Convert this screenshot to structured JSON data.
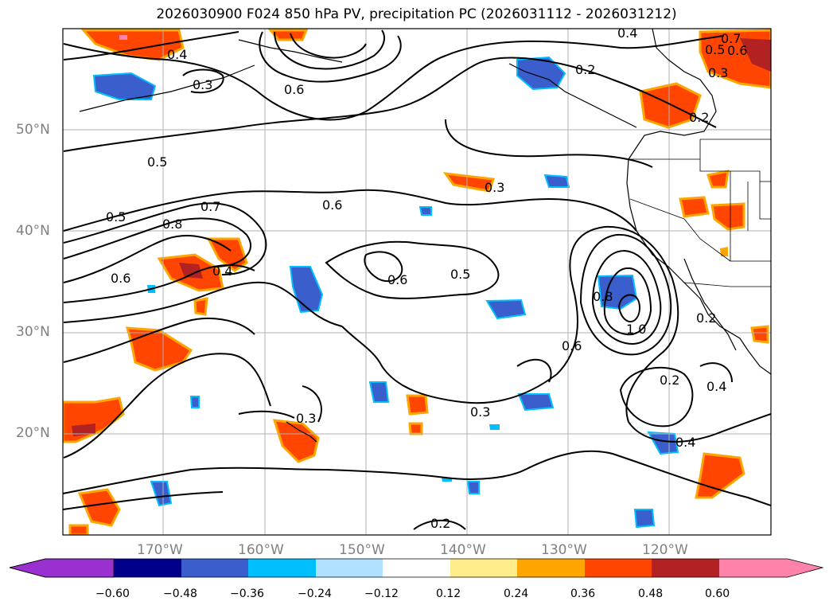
{
  "title": "2026030900 F024 850 hPa PV, precipitation PC (2026031112 - 2026031212)",
  "map": {
    "lat_labels": [
      "50°N",
      "40°N",
      "30°N",
      "20°N"
    ],
    "lon_labels": [
      "170°W",
      "160°W",
      "150°W",
      "140°W",
      "130°W",
      "120°W"
    ],
    "contour_labels": [
      "0.4",
      "0.3",
      "0.6",
      "0.4",
      "0.2",
      "0.7",
      "0.6",
      "0.5",
      "0.3",
      "0.2",
      "0.5",
      "0.7",
      "0.8",
      "0.5",
      "0.6",
      "0.4",
      "0.6",
      "0.5",
      "0.3",
      "0.6",
      "0.8",
      "1.0",
      "0.6",
      "0.2",
      "0.2",
      "0.4",
      "0.4",
      "0.3",
      "0.3",
      "0.2"
    ],
    "colors": {
      "neg_060": "#9b30d0",
      "neg_048": "#00008b",
      "neg_036": "#3a5fcd",
      "neg_024": "#00bfff",
      "neg_012": "#b0e2ff",
      "pos_012": "#ffec8b",
      "pos_024": "#ffa500",
      "pos_036": "#ff4500",
      "pos_048": "#b22222",
      "pos_060": "#ff82ab"
    }
  },
  "colorbar": {
    "ticks": [
      "−0.60",
      "−0.48",
      "−0.36",
      "−0.24",
      "−0.12",
      "0.12",
      "0.24",
      "0.36",
      "0.48",
      "0.60"
    ]
  }
}
